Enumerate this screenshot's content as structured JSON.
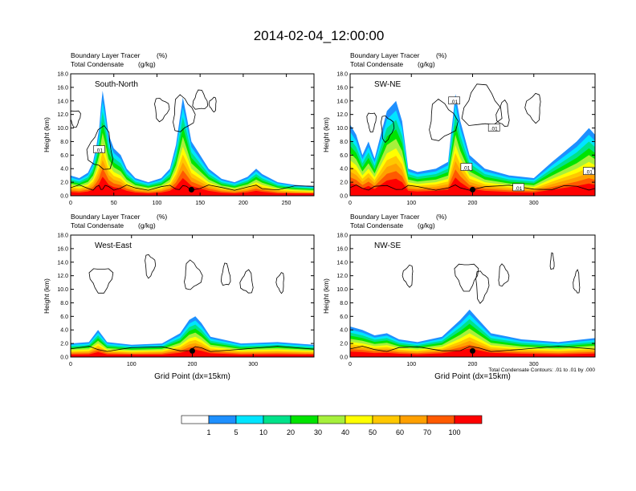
{
  "title": "2014-02-04_12:00:00",
  "colors": {
    "frame": "#000000",
    "contour": "#000000",
    "colorbar": [
      "#ffffff",
      "#1e90ff",
      "#00e5ff",
      "#00e28a",
      "#00e400",
      "#a6f03c",
      "#ffff00",
      "#ffc800",
      "#ffa000",
      "#ff5a00",
      "#ff0000"
    ]
  },
  "chart_data": [
    {
      "type": "heatmap",
      "panel": "South-North",
      "header_left_1": "Boundary Layer Tracer",
      "header_units_1": "(%)",
      "header_left_2": "Total Condensate",
      "header_units_2": "(g/kg)",
      "ylabel": "Height (km)",
      "xlabel": "",
      "xlim": [
        0,
        282
      ],
      "ylim": [
        0,
        18
      ],
      "xticks": [
        0,
        50,
        100,
        150,
        200,
        250
      ],
      "yticks": [
        0,
        2,
        4,
        6,
        8,
        10,
        12,
        14,
        16,
        18
      ],
      "ytick_labels": [
        "0.0",
        "2.0",
        "4.0",
        "6.0",
        "8.0",
        "10.0",
        "12.0",
        "14.0",
        "16.0",
        "18.0"
      ],
      "marker": {
        "x": 140,
        "y": 0.9
      },
      "contour_labels": [
        {
          "x": 33,
          "y": 6.8,
          "text": ".01"
        }
      ],
      "tracer_columns": [
        {
          "x": 0,
          "top": 3
        },
        {
          "x": 10,
          "top": 2.6
        },
        {
          "x": 20,
          "top": 3.4
        },
        {
          "x": 26,
          "top": 5
        },
        {
          "x": 30,
          "top": 7.5
        },
        {
          "x": 33,
          "top": 10
        },
        {
          "x": 35,
          "top": 13
        },
        {
          "x": 37,
          "top": 15.5
        },
        {
          "x": 40,
          "top": 13
        },
        {
          "x": 44,
          "top": 9
        },
        {
          "x": 50,
          "top": 7
        },
        {
          "x": 58,
          "top": 6
        },
        {
          "x": 65,
          "top": 4
        },
        {
          "x": 75,
          "top": 2.6
        },
        {
          "x": 90,
          "top": 2
        },
        {
          "x": 105,
          "top": 2.6
        },
        {
          "x": 115,
          "top": 4
        },
        {
          "x": 122,
          "top": 7.5
        },
        {
          "x": 126,
          "top": 11
        },
        {
          "x": 130,
          "top": 14.5
        },
        {
          "x": 134,
          "top": 12
        },
        {
          "x": 140,
          "top": 8
        },
        {
          "x": 150,
          "top": 6
        },
        {
          "x": 160,
          "top": 4
        },
        {
          "x": 175,
          "top": 2.5
        },
        {
          "x": 190,
          "top": 2
        },
        {
          "x": 205,
          "top": 2.8
        },
        {
          "x": 215,
          "top": 4
        },
        {
          "x": 222,
          "top": 3.2
        },
        {
          "x": 240,
          "top": 2
        },
        {
          "x": 260,
          "top": 1.6
        },
        {
          "x": 282,
          "top": 1.4
        }
      ]
    },
    {
      "type": "heatmap",
      "panel": "SW-NE",
      "header_left_1": "Boundary Layer Tracer",
      "header_units_1": "(%)",
      "header_left_2": "Total Condensate",
      "header_units_2": "(g/kg)",
      "ylabel": "Height (km)",
      "xlabel": "",
      "xlim": [
        0,
        400
      ],
      "ylim": [
        0,
        18
      ],
      "xticks": [
        0,
        100,
        200,
        300
      ],
      "yticks": [
        0,
        2,
        4,
        6,
        8,
        10,
        12,
        14,
        16,
        18
      ],
      "ytick_labels": [
        "0.0",
        "2.0",
        "4.0",
        "6.0",
        "8.0",
        "10.0",
        "12.0",
        "14.0",
        "16.0",
        "18.0"
      ],
      "marker": {
        "x": 200,
        "y": 0.9
      },
      "contour_labels": [
        {
          "x": 170,
          "y": 14,
          "text": ".01"
        },
        {
          "x": 235,
          "y": 10,
          "text": ".01"
        },
        {
          "x": 190,
          "y": 4.2,
          "text": ".01"
        },
        {
          "x": 275,
          "y": 1.2,
          "text": ".01"
        },
        {
          "x": 390,
          "y": 3.6,
          "text": ".01"
        }
      ],
      "tracer_columns": [
        {
          "x": 0,
          "top": 10.5
        },
        {
          "x": 10,
          "top": 9
        },
        {
          "x": 20,
          "top": 6
        },
        {
          "x": 30,
          "top": 8
        },
        {
          "x": 40,
          "top": 5.5
        },
        {
          "x": 60,
          "top": 12.5
        },
        {
          "x": 75,
          "top": 14
        },
        {
          "x": 85,
          "top": 11
        },
        {
          "x": 95,
          "top": 4
        },
        {
          "x": 110,
          "top": 3.5
        },
        {
          "x": 140,
          "top": 4
        },
        {
          "x": 160,
          "top": 5
        },
        {
          "x": 172,
          "top": 15
        },
        {
          "x": 180,
          "top": 11
        },
        {
          "x": 195,
          "top": 6
        },
        {
          "x": 220,
          "top": 4
        },
        {
          "x": 260,
          "top": 3
        },
        {
          "x": 300,
          "top": 2.6
        },
        {
          "x": 330,
          "top": 5
        },
        {
          "x": 350,
          "top": 6.5
        },
        {
          "x": 370,
          "top": 8
        },
        {
          "x": 390,
          "top": 10
        },
        {
          "x": 400,
          "top": 9
        }
      ]
    },
    {
      "type": "heatmap",
      "panel": "West-East",
      "header_left_1": "Boundary Layer Tracer",
      "header_units_1": "(%)",
      "header_left_2": "Total Condensate",
      "header_units_2": "(g/kg)",
      "ylabel": "Height (km)",
      "xlabel": "Grid Point (dx=15km)",
      "xlim": [
        0,
        400
      ],
      "ylim": [
        0,
        18
      ],
      "xticks": [
        0,
        100,
        200,
        300
      ],
      "yticks": [
        0,
        2,
        4,
        6,
        8,
        10,
        12,
        14,
        16,
        18
      ],
      "ytick_labels": [
        "0.0",
        "2.0",
        "4.0",
        "6.0",
        "8.0",
        "10.0",
        "12.0",
        "14.0",
        "16.0",
        "18.0"
      ],
      "marker": {
        "x": 200,
        "y": 0.9
      },
      "contour_labels": [],
      "tracer_columns": [
        {
          "x": 0,
          "top": 2
        },
        {
          "x": 30,
          "top": 2.2
        },
        {
          "x": 45,
          "top": 4
        },
        {
          "x": 60,
          "top": 2.2
        },
        {
          "x": 100,
          "top": 1.8
        },
        {
          "x": 150,
          "top": 2
        },
        {
          "x": 180,
          "top": 3.5
        },
        {
          "x": 195,
          "top": 5.5
        },
        {
          "x": 205,
          "top": 6
        },
        {
          "x": 215,
          "top": 5
        },
        {
          "x": 230,
          "top": 3
        },
        {
          "x": 280,
          "top": 2
        },
        {
          "x": 340,
          "top": 2.2
        },
        {
          "x": 400,
          "top": 1.8
        }
      ]
    },
    {
      "type": "heatmap",
      "panel": "NW-SE",
      "header_left_1": "Boundary Layer Tracer",
      "header_units_1": "(%)",
      "header_left_2": "Total Condensate",
      "header_units_2": "(g/kg)",
      "ylabel": "Height (km)",
      "xlabel": "Grid Point (dx=15km)",
      "xlim": [
        0,
        400
      ],
      "ylim": [
        0,
        18
      ],
      "xticks": [
        0,
        100,
        200,
        300
      ],
      "yticks": [
        0,
        2,
        4,
        6,
        8,
        10,
        12,
        14,
        16,
        18
      ],
      "ytick_labels": [
        "0.0",
        "2.0",
        "4.0",
        "6.0",
        "8.0",
        "10.0",
        "12.0",
        "14.0",
        "16.0",
        "18.0"
      ],
      "marker": {
        "x": 200,
        "y": 0.9
      },
      "contour_labels": [],
      "footnote": "Total Condensate Contours: .01 to .01 by .000",
      "tracer_columns": [
        {
          "x": 0,
          "top": 4.5
        },
        {
          "x": 20,
          "top": 4
        },
        {
          "x": 40,
          "top": 3.2
        },
        {
          "x": 60,
          "top": 3.5
        },
        {
          "x": 80,
          "top": 2.6
        },
        {
          "x": 110,
          "top": 2.2
        },
        {
          "x": 150,
          "top": 3
        },
        {
          "x": 180,
          "top": 5.5
        },
        {
          "x": 195,
          "top": 7
        },
        {
          "x": 210,
          "top": 5.5
        },
        {
          "x": 230,
          "top": 3.5
        },
        {
          "x": 280,
          "top": 2.6
        },
        {
          "x": 340,
          "top": 2.2
        },
        {
          "x": 400,
          "top": 2.8
        }
      ]
    }
  ],
  "colorbar": {
    "labels": [
      "1",
      "5",
      "10",
      "20",
      "30",
      "40",
      "50",
      "60",
      "70",
      "100"
    ]
  }
}
